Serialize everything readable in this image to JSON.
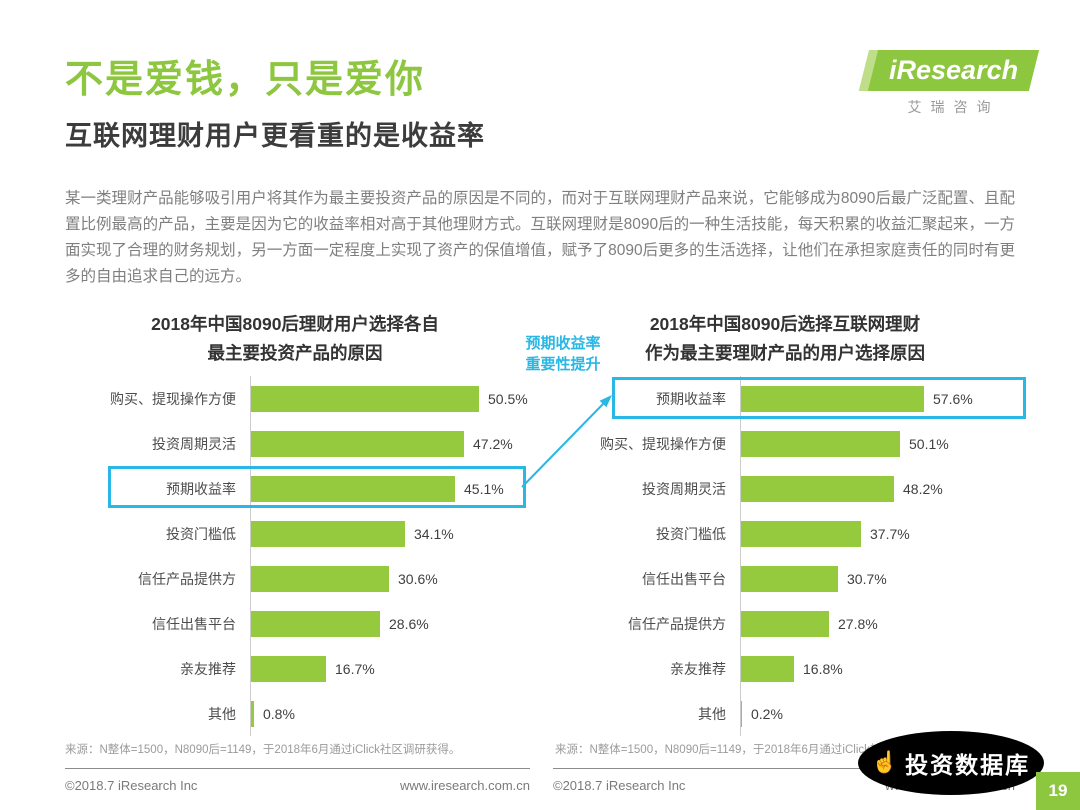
{
  "page": {
    "title_green": "不是爱钱，只是爱你",
    "subtitle": "互联网理财用户更看重的是收益率",
    "body": "某一类理财产品能够吸引用户将其作为最主要投资产品的原因是不同的，而对于互联网理财产品来说，它能够成为8090后最广泛配置、且配置比例最高的产品，主要是因为它的收益率相对高于其他理财方式。互联网理财是8090后的一种生活技能，每天积累的收益汇聚起来，一方面实现了合理的财务规划，另一方面一定程度上实现了资产的保值增值，赋予了8090后更多的生活选择，让他们在承担家庭责任的同时有更多的自由追求自己的远方。",
    "page_number": "19"
  },
  "logo": {
    "name": "iResearch",
    "cn": "艾瑞咨询"
  },
  "annotation": {
    "line1": "预期收益率",
    "line2": "重要性提升"
  },
  "watermark": {
    "text": "投资数据库",
    "icon": "hand-icon"
  },
  "footer": {
    "copyright": "©2018.7 iResearch Inc",
    "url": "www.iresearch.com.cn"
  },
  "colors": {
    "green": "#8dc63f",
    "bar_green": "#95c93e",
    "cyan": "#29b7e5"
  },
  "chart_data": [
    {
      "type": "bar",
      "orientation": "horizontal",
      "title": "2018年中国8090后理财用户选择各自最主要投资产品的原因",
      "title_line1": "2018年中国8090后理财用户选择各自",
      "title_line2": "最主要投资产品的原因",
      "categories": [
        "购买、提现操作方便",
        "投资周期灵活",
        "预期收益率",
        "投资门槛低",
        "信任产品提供方",
        "信任出售平台",
        "亲友推荐",
        "其他"
      ],
      "values": [
        50.5,
        47.2,
        45.1,
        34.1,
        30.6,
        28.6,
        16.7,
        0.8
      ],
      "value_labels": [
        "50.5%",
        "47.2%",
        "45.1%",
        "34.1%",
        "30.6%",
        "28.6%",
        "16.7%",
        "0.8%"
      ],
      "axis_max": 52,
      "grid": false,
      "legend": false,
      "highlight_index": 2,
      "source": "来源：N整体=1500，N8090后=1149，于2018年6月通过iClick社区调研获得。"
    },
    {
      "type": "bar",
      "orientation": "horizontal",
      "title": "2018年中国8090后选择互联网理财作为最主要理财产品的用户选择原因",
      "title_line1": "2018年中国8090后选择互联网理财",
      "title_line2": "作为最主要理财产品的用户选择原因",
      "categories": [
        "预期收益率",
        "购买、提现操作方便",
        "投资周期灵活",
        "投资门槛低",
        "信任出售平台",
        "信任产品提供方",
        "亲友推荐",
        "其他"
      ],
      "values": [
        57.6,
        50.1,
        48.2,
        37.7,
        30.7,
        27.8,
        16.8,
        0.2
      ],
      "value_labels": [
        "57.6%",
        "50.1%",
        "48.2%",
        "37.7%",
        "30.7%",
        "27.8%",
        "16.8%",
        "0.2%"
      ],
      "axis_max": 60,
      "grid": false,
      "legend": false,
      "highlight_index": 0,
      "source": "来源：N整体=1500，N8090后=1149，于2018年6月通过iClick社区调研获得。"
    }
  ]
}
